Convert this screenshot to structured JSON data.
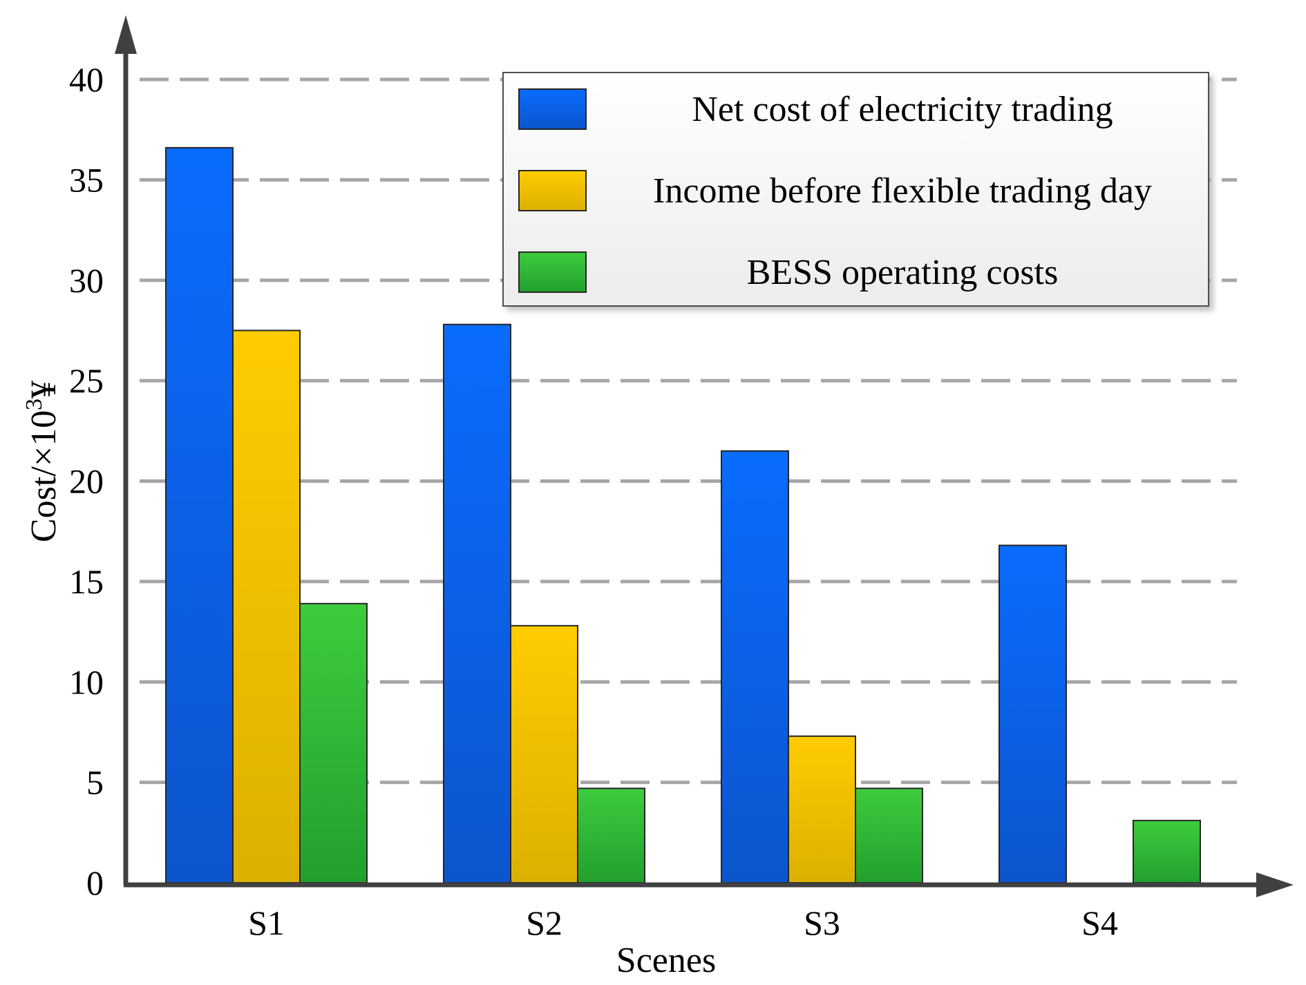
{
  "chart_data": {
    "type": "bar",
    "title": "",
    "xlabel": "Scenes",
    "ylabel": "Cost/×10",
    "ylabel_superscript": "3",
    "ylabel_unit": "¥",
    "categories": [
      "S1",
      "S2",
      "S3",
      "S4"
    ],
    "series": [
      {
        "name": "Net cost of electricity trading",
        "values": [
          36.6,
          27.8,
          21.5,
          16.8
        ],
        "color_light": "#0a6cff",
        "color_dark": "#0c55cc"
      },
      {
        "name": "Income before flexible trading day",
        "values": [
          27.5,
          12.8,
          7.3,
          0
        ],
        "color_light": "#ffcc00",
        "color_dark": "#dcb000"
      },
      {
        "name": "BESS operating costs",
        "values": [
          13.9,
          4.7,
          4.7,
          3.1
        ],
        "color_light": "#3dcc3d",
        "color_dark": "#22a02e"
      }
    ],
    "ylim": [
      0,
      40
    ],
    "yticks": [
      0,
      5,
      10,
      15,
      20,
      25,
      30,
      35,
      40
    ],
    "grid": true,
    "legend_position": "top-right"
  }
}
